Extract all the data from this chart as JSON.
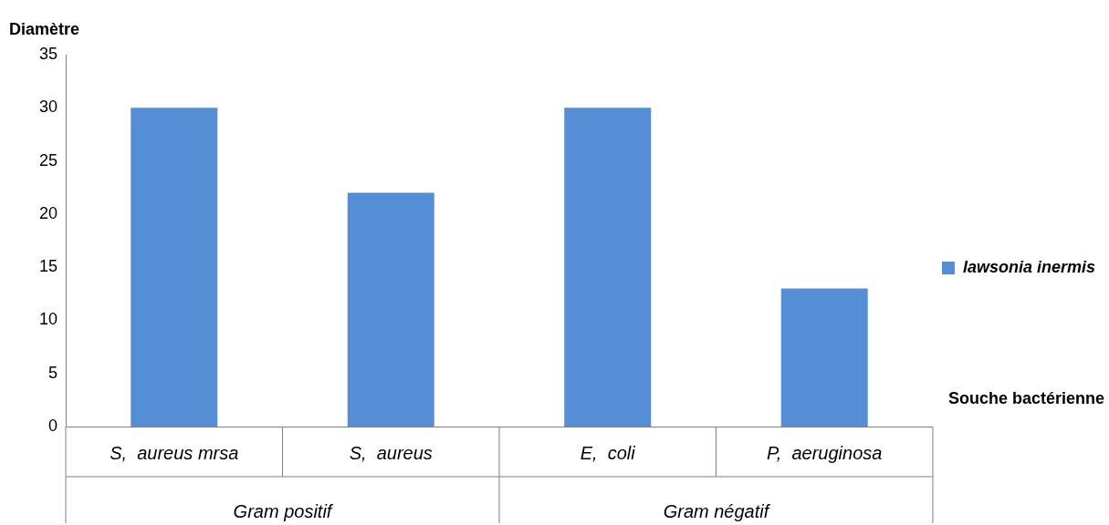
{
  "chart_data": {
    "type": "bar",
    "ylabel": "Diamètre",
    "xlabel": "Souche bactérienne",
    "categories": [
      "S,  aureus mrsa",
      "S,  aureus",
      "E,  coli",
      "P,  aeruginosa"
    ],
    "series": [
      {
        "name": "lawsonia inermis",
        "color": "#558ed5",
        "values": [
          30,
          22,
          30,
          13
        ]
      }
    ],
    "annotations": [
      "Gram positif",
      "Gram négatif"
    ],
    "ylim": [
      0,
      35
    ],
    "yticks": [
      0,
      5,
      10,
      15,
      20,
      25,
      30,
      35
    ],
    "grid": false,
    "legend": "right"
  }
}
